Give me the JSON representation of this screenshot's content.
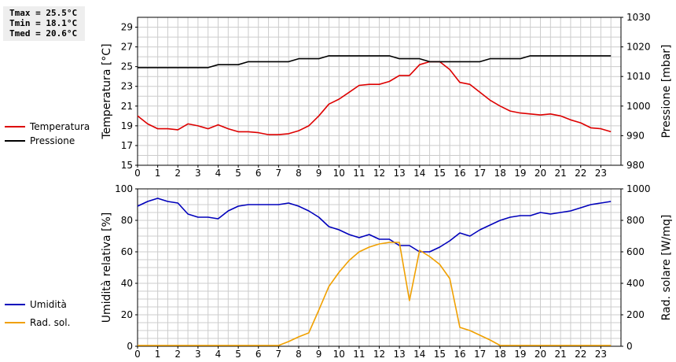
{
  "stats": {
    "tmax": "Tmax = 25.5°C",
    "tmin": "Tmin = 18.1°C",
    "tmed": "Tmed = 20.6°C"
  },
  "chart_data": [
    {
      "type": "line",
      "xlabel": "",
      "ylabel_left": "Temperatura [°C]",
      "ylabel_right": "Pressione [mbar]",
      "xlim": [
        0,
        24
      ],
      "xticks": [
        "0",
        "1",
        "2",
        "3",
        "4",
        "5",
        "6",
        "7",
        "8",
        "9",
        "10",
        "11",
        "12",
        "13",
        "14",
        "15",
        "16",
        "17",
        "18",
        "19",
        "20",
        "21",
        "22",
        "23"
      ],
      "ylim_left": [
        15,
        30
      ],
      "yticks_left": [
        "15",
        "17",
        "19",
        "21",
        "23",
        "25",
        "27",
        "29"
      ],
      "ylim_right": [
        980,
        1030
      ],
      "yticks_right": [
        "980",
        "990",
        "1000",
        "1010",
        "1020",
        "1030"
      ],
      "grid": true,
      "series": [
        {
          "name": "Temperatura",
          "color": "#dd0000",
          "axis": "left",
          "x": [
            0,
            0.5,
            1,
            1.5,
            2,
            2.5,
            3,
            3.5,
            4,
            4.5,
            5,
            5.5,
            6,
            6.5,
            7,
            7.5,
            8,
            8.5,
            9,
            9.5,
            10,
            10.5,
            11,
            11.5,
            12,
            12.5,
            13,
            13.5,
            14,
            14.5,
            15,
            15.5,
            16,
            16.5,
            17,
            17.5,
            18,
            18.5,
            19,
            19.5,
            20,
            20.5,
            21,
            21.5,
            22,
            22.5,
            23,
            23.5
          ],
          "y": [
            20.0,
            19.2,
            18.7,
            18.7,
            18.6,
            19.2,
            19.0,
            18.7,
            19.1,
            18.7,
            18.4,
            18.4,
            18.3,
            18.1,
            18.1,
            18.2,
            18.5,
            19.0,
            20.0,
            21.2,
            21.7,
            22.4,
            23.1,
            23.2,
            23.2,
            23.5,
            24.1,
            24.1,
            25.2,
            25.5,
            25.5,
            24.7,
            23.4,
            23.2,
            22.4,
            21.6,
            21.0,
            20.5,
            20.3,
            20.2,
            20.1,
            20.2,
            20.0,
            19.6,
            19.3,
            18.8,
            18.7,
            18.4
          ]
        },
        {
          "name": "Pressione",
          "color": "#000000",
          "axis": "right",
          "x": [
            0,
            0.5,
            1,
            1.5,
            2,
            2.5,
            3,
            3.5,
            4,
            4.5,
            5,
            5.5,
            6,
            6.5,
            7,
            7.5,
            8,
            8.5,
            9,
            9.5,
            10,
            10.5,
            11,
            11.5,
            12,
            12.5,
            13,
            13.5,
            14,
            14.5,
            15,
            15.5,
            16,
            16.5,
            17,
            17.5,
            18,
            18.5,
            19,
            19.5,
            20,
            20.5,
            21,
            21.5,
            22,
            22.5,
            23,
            23.5
          ],
          "y": [
            1013,
            1013,
            1013,
            1013,
            1013,
            1013,
            1013,
            1013,
            1014,
            1014,
            1014,
            1015,
            1015,
            1015,
            1015,
            1015,
            1016,
            1016,
            1016,
            1017,
            1017,
            1017,
            1017,
            1017,
            1017,
            1017,
            1016,
            1016,
            1016,
            1015,
            1015,
            1015,
            1015,
            1015,
            1015,
            1016,
            1016,
            1016,
            1016,
            1017,
            1017,
            1017,
            1017,
            1017,
            1017,
            1017,
            1017,
            1017
          ]
        }
      ]
    },
    {
      "type": "line",
      "xlabel": "",
      "ylabel_left": "Umidità relativa [%]",
      "ylabel_right": "Rad. solare [W/mq]",
      "xlim": [
        0,
        24
      ],
      "xticks": [
        "0",
        "1",
        "2",
        "3",
        "4",
        "5",
        "6",
        "7",
        "8",
        "9",
        "10",
        "11",
        "12",
        "13",
        "14",
        "15",
        "16",
        "17",
        "18",
        "19",
        "20",
        "21",
        "22",
        "23"
      ],
      "ylim_left": [
        0,
        100
      ],
      "yticks_left": [
        "0",
        "20",
        "40",
        "60",
        "80",
        "100"
      ],
      "ylim_right": [
        0,
        1000
      ],
      "yticks_right": [
        "0",
        "200",
        "400",
        "600",
        "800",
        "1000"
      ],
      "grid": true,
      "series": [
        {
          "name": "Umidità",
          "color": "#0000bb",
          "axis": "left",
          "x": [
            0,
            0.5,
            1,
            1.5,
            2,
            2.5,
            3,
            3.5,
            4,
            4.5,
            5,
            5.5,
            6,
            6.5,
            7,
            7.5,
            8,
            8.5,
            9,
            9.5,
            10,
            10.5,
            11,
            11.5,
            12,
            12.5,
            13,
            13.5,
            14,
            14.5,
            15,
            15.5,
            16,
            16.5,
            17,
            17.5,
            18,
            18.5,
            19,
            19.5,
            20,
            20.5,
            21,
            21.5,
            22,
            22.5,
            23,
            23.5
          ],
          "y": [
            89,
            92,
            94,
            92,
            91,
            84,
            82,
            82,
            81,
            86,
            89,
            90,
            90,
            90,
            90,
            91,
            89,
            86,
            82,
            76,
            74,
            71,
            69,
            71,
            68,
            68,
            64,
            64,
            60,
            60,
            63,
            67,
            72,
            70,
            74,
            77,
            80,
            82,
            83,
            83,
            85,
            84,
            85,
            86,
            88,
            90,
            91,
            92
          ]
        },
        {
          "name": "Rad. sol.",
          "color": "#f0a000",
          "axis": "right",
          "x": [
            0,
            0.5,
            1,
            1.5,
            2,
            2.5,
            3,
            3.5,
            4,
            4.5,
            5,
            5.5,
            6,
            6.5,
            7,
            7.5,
            8,
            8.5,
            9,
            9.5,
            10,
            10.5,
            11,
            11.5,
            12,
            12.5,
            13,
            13.5,
            14,
            14.5,
            15,
            15.5,
            16,
            16.5,
            17,
            17.5,
            18,
            18.5,
            19,
            19.5,
            20,
            20.5,
            21,
            21.5,
            22,
            22.5,
            23,
            23.5
          ],
          "y": [
            5,
            5,
            5,
            5,
            5,
            5,
            5,
            5,
            5,
            5,
            5,
            5,
            5,
            5,
            5,
            30,
            60,
            85,
            230,
            380,
            470,
            545,
            600,
            630,
            650,
            660,
            660,
            290,
            610,
            570,
            520,
            430,
            120,
            100,
            70,
            40,
            5,
            5,
            5,
            5,
            5,
            5,
            5,
            5,
            5,
            5,
            5,
            5
          ]
        }
      ]
    }
  ]
}
